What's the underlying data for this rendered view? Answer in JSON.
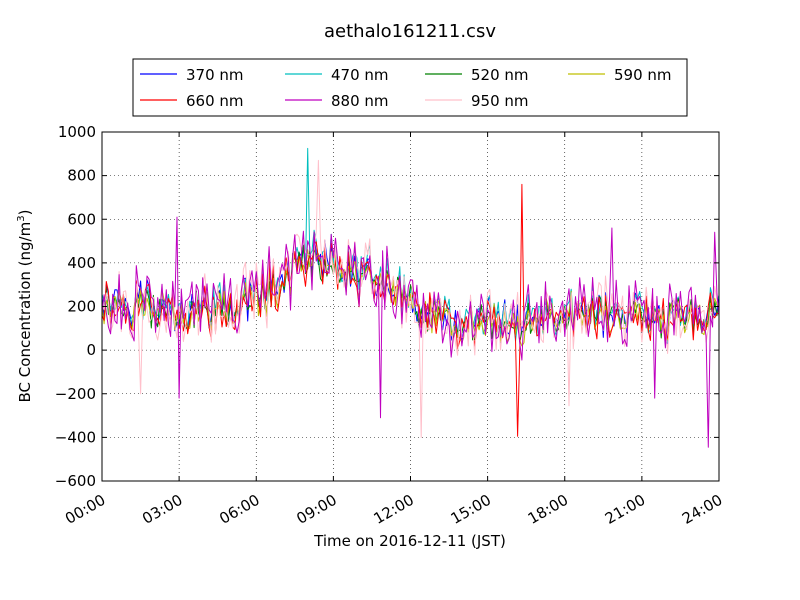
{
  "chart_data": {
    "type": "line",
    "title": "aethalo161211.csv",
    "xlabel": "Time on 2016-12-11 (JST)",
    "ylabel": "BC Concentration (ng/m",
    "ylabel_sup": "3",
    "ylabel_tail": ")",
    "xlim_hours": [
      0,
      24
    ],
    "ylim": [
      -600,
      1000
    ],
    "grid": true,
    "grid_style": "dotted",
    "legend_position": "top-center",
    "legend_columns": 4,
    "x_ticks": [
      {
        "hour": 0,
        "label": "00:00"
      },
      {
        "hour": 3,
        "label": "03:00"
      },
      {
        "hour": 6,
        "label": "06:00"
      },
      {
        "hour": 9,
        "label": "09:00"
      },
      {
        "hour": 12,
        "label": "12:00"
      },
      {
        "hour": 15,
        "label": "15:00"
      },
      {
        "hour": 18,
        "label": "18:00"
      },
      {
        "hour": 21,
        "label": "21:00"
      },
      {
        "hour": 24,
        "label": "24:00"
      }
    ],
    "y_ticks": [
      1000,
      800,
      600,
      400,
      200,
      0,
      -200,
      -400,
      -600
    ],
    "sample_interval_minutes": 5,
    "series": [
      {
        "name": "370 nm",
        "color": "#0000ff",
        "noise": 55,
        "amp": 1.0
      },
      {
        "name": "470 nm",
        "color": "#00bfbf",
        "noise": 60,
        "amp": 1.05
      },
      {
        "name": "520 nm",
        "color": "#008000",
        "noise": 50,
        "amp": 0.95
      },
      {
        "name": "590 nm",
        "color": "#bfbf00",
        "noise": 55,
        "amp": 0.95
      },
      {
        "name": "660 nm",
        "color": "#ff0000",
        "noise": 75,
        "amp": 0.95
      },
      {
        "name": "880 nm",
        "color": "#bf00bf",
        "noise": 120,
        "amp": 1.0
      },
      {
        "name": "950 nm",
        "color": "#ffc0cb",
        "noise": 120,
        "amp": 1.0
      }
    ],
    "baseline_profile": [
      {
        "hour": 0,
        "value": 220
      },
      {
        "hour": 1,
        "value": 230
      },
      {
        "hour": 2,
        "value": 210
      },
      {
        "hour": 3,
        "value": 190
      },
      {
        "hour": 4,
        "value": 180
      },
      {
        "hour": 5,
        "value": 220
      },
      {
        "hour": 6,
        "value": 250
      },
      {
        "hour": 7,
        "value": 330
      },
      {
        "hour": 8,
        "value": 430
      },
      {
        "hour": 9,
        "value": 420
      },
      {
        "hour": 10,
        "value": 360
      },
      {
        "hour": 11,
        "value": 330
      },
      {
        "hour": 12,
        "value": 230
      },
      {
        "hour": 13,
        "value": 160
      },
      {
        "hour": 14,
        "value": 150
      },
      {
        "hour": 15,
        "value": 140
      },
      {
        "hour": 16,
        "value": 130
      },
      {
        "hour": 17,
        "value": 140
      },
      {
        "hour": 18,
        "value": 160
      },
      {
        "hour": 19,
        "value": 170
      },
      {
        "hour": 20,
        "value": 180
      },
      {
        "hour": 21,
        "value": 160
      },
      {
        "hour": 22,
        "value": 140
      },
      {
        "hour": 23,
        "value": 150
      },
      {
        "hour": 24,
        "value": 160
      }
    ],
    "spikes": [
      {
        "series": "470 nm",
        "hour": 8.0,
        "value": 925
      },
      {
        "series": "950 nm",
        "hour": 8.4,
        "value": 870
      },
      {
        "series": "880 nm",
        "hour": 2.9,
        "value": 610
      },
      {
        "series": "880 nm",
        "hour": 3.0,
        "value": -220
      },
      {
        "series": "880 nm",
        "hour": 10.8,
        "value": -310
      },
      {
        "series": "950 nm",
        "hour": 12.4,
        "value": -400
      },
      {
        "series": "660 nm",
        "hour": 16.3,
        "value": 760
      },
      {
        "series": "660 nm",
        "hour": 16.2,
        "value": -395
      },
      {
        "series": "880 nm",
        "hour": 19.8,
        "value": 560
      },
      {
        "series": "880 nm",
        "hour": 21.5,
        "value": -220
      },
      {
        "series": "880 nm",
        "hour": 23.6,
        "value": -445
      },
      {
        "series": "880 nm",
        "hour": 23.8,
        "value": 540
      },
      {
        "series": "950 nm",
        "hour": 1.5,
        "value": -200
      },
      {
        "series": "950 nm",
        "hour": 18.2,
        "value": -255
      }
    ]
  }
}
